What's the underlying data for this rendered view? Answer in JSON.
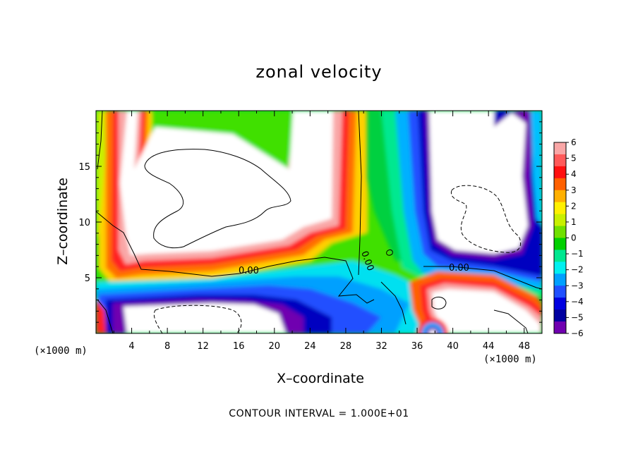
{
  "chart_data": {
    "type": "heatmap",
    "title": "zonal velocity",
    "xlabel": "X–coordinate",
    "ylabel": "Z–coordinate",
    "x_unit_left": "(×1000 m)",
    "x_unit_right": "(×1000 m)",
    "xlim": [
      0,
      50
    ],
    "ylim": [
      0,
      20
    ],
    "x_ticks": [
      "4",
      "8",
      "12",
      "16",
      "20",
      "24",
      "28",
      "32",
      "36",
      "40",
      "44",
      "48"
    ],
    "y_ticks": [
      "5",
      "10",
      "15"
    ],
    "colorbar": {
      "labels": [
        "6",
        "5",
        "4",
        "3",
        "2",
        "1",
        "0",
        "−1",
        "−2",
        "−3",
        "−4",
        "−5",
        "−6"
      ],
      "range": [
        -6,
        6
      ],
      "colors": [
        "#f9a7a7",
        "#ff5a5a",
        "#ff1010",
        "#ff6000",
        "#ffb000",
        "#fff000",
        "#c8f000",
        "#70e000",
        "#00d000",
        "#00e890",
        "#00f0f0",
        "#00a0ff",
        "#2050ff",
        "#0000e0",
        "#0000a0",
        "#7000b0"
      ]
    },
    "contour_label": "0.00",
    "contour_note": "CONTOUR INTERVAL = 1.000E+01",
    "fields": {
      "positive_core_left": "upper-left white region (> 6)",
      "positive_core_right": "upper-right white region (> 6)",
      "negative_core_bottom": "lower-left white region (< -6)"
    }
  }
}
